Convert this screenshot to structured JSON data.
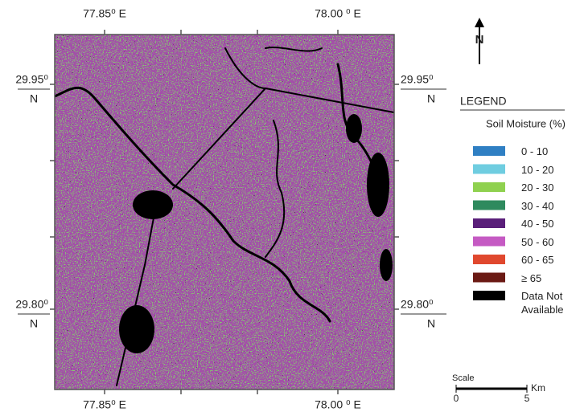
{
  "map": {
    "longitude_labels": [
      "77.85⁰ E",
      "78.00 ⁰ E"
    ],
    "latitude_labels": [
      {
        "degrees": "29.95⁰",
        "hemisphere": "N"
      },
      {
        "degrees": "29.80⁰",
        "hemisphere": "N"
      }
    ],
    "north_arrow": "N",
    "legend": {
      "title": "LEGEND",
      "subtitle": "Soil Moisture (%)",
      "items": [
        {
          "label": "0 - 10",
          "color": "#2f7fc3"
        },
        {
          "label": "10 - 20",
          "color": "#6fcde0"
        },
        {
          "label": "20 - 30",
          "color": "#8fd14f"
        },
        {
          "label": "30 - 40",
          "color": "#2e8a5e"
        },
        {
          "label": "40 - 50",
          "color": "#5a1f7a"
        },
        {
          "label": "50 - 60",
          "color": "#c55ac3"
        },
        {
          "label": "60 - 65",
          "color": "#e0482e"
        },
        {
          "label": "≥ 65",
          "color": "#6b1a14"
        },
        {
          "label": "Data Not Available",
          "color": "#000000"
        }
      ]
    },
    "scale": {
      "title": "Scale",
      "labels": [
        "0",
        "5"
      ],
      "unit": "Km"
    }
  }
}
